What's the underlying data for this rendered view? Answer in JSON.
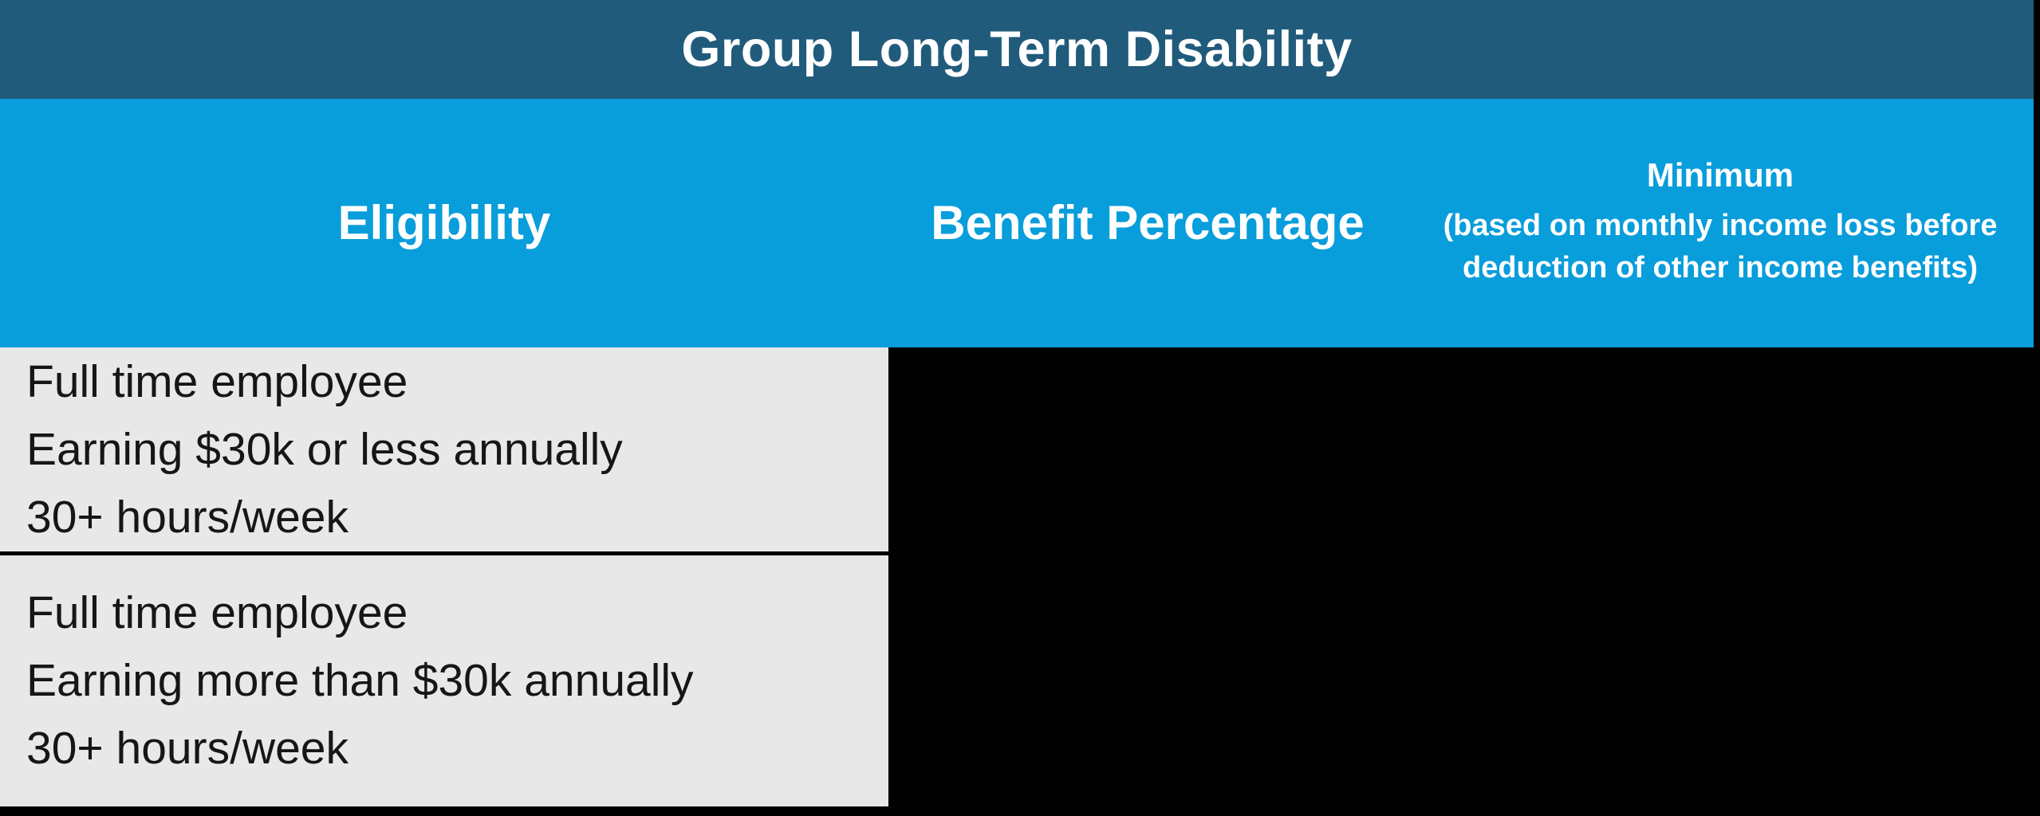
{
  "table": {
    "title": "Group Long-Term Disability",
    "columns": [
      {
        "label": "Eligibility"
      },
      {
        "label": "Benefit Percentage"
      },
      {
        "label": "Minimum",
        "sublabel": "(based on monthly income loss before deduction of other income benefits)"
      }
    ],
    "rows": [
      {
        "lines": [
          "Full time employee",
          "Earning $30k or less annually",
          "30+ hours/week"
        ]
      },
      {
        "lines": [
          "Full time employee",
          "Earning more than $30k annually",
          "30+ hours/week"
        ]
      }
    ]
  },
  "colors": {
    "title-bar-bg": "#215B7C",
    "header-bg": "#089DDB",
    "row-bg": "#E8E8E8",
    "page-bg": "#000000",
    "header-text": "#FFFFFF",
    "body-text": "#161616",
    "divider": "#000000"
  }
}
